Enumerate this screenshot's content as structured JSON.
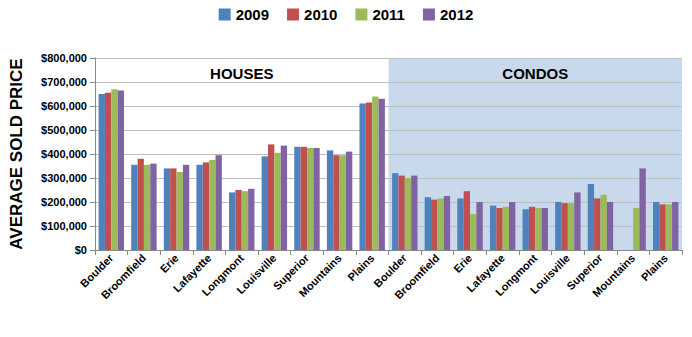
{
  "chart_data": {
    "type": "bar",
    "y_label": "AVERAGE SOLD PRICE",
    "annotations": [
      "HOUSES",
      "CONDOS"
    ],
    "categories": [
      "Boulder",
      "Broomfield",
      "Erie",
      "Lafayette",
      "Longmont",
      "Louisville",
      "Superior",
      "Mountains",
      "Plains",
      "Boulder",
      "Broomfield",
      "Erie",
      "Lafayette",
      "Longmont",
      "Louisville",
      "Superior",
      "Mountains",
      "Plains"
    ],
    "series": [
      {
        "name": "2009",
        "color": "#4F81BD",
        "values": [
          650000,
          355000,
          340000,
          355000,
          240000,
          390000,
          430000,
          415000,
          610000,
          320000,
          220000,
          215000,
          185000,
          170000,
          200000,
          275000,
          null,
          200000
        ]
      },
      {
        "name": "2010",
        "color": "#C0504D",
        "values": [
          655000,
          380000,
          340000,
          365000,
          250000,
          440000,
          430000,
          395000,
          615000,
          310000,
          210000,
          245000,
          175000,
          180000,
          195000,
          215000,
          null,
          190000
        ]
      },
      {
        "name": "2011",
        "color": "#9BBB59",
        "values": [
          670000,
          355000,
          325000,
          375000,
          245000,
          405000,
          425000,
          395000,
          640000,
          300000,
          215000,
          150000,
          180000,
          175000,
          195000,
          230000,
          175000,
          190000
        ]
      },
      {
        "name": "2012",
        "color": "#8064A2",
        "values": [
          665000,
          360000,
          355000,
          395000,
          255000,
          435000,
          425000,
          410000,
          630000,
          310000,
          225000,
          200000,
          200000,
          175000,
          240000,
          200000,
          340000,
          200000
        ]
      }
    ],
    "ylim": [
      0,
      800000
    ],
    "yticks": [
      {
        "value": 0,
        "label": "$0"
      },
      {
        "value": 100000,
        "label": "$100,000"
      },
      {
        "value": 200000,
        "label": "$200,000"
      },
      {
        "value": 300000,
        "label": "$300,000"
      },
      {
        "value": 400000,
        "label": "$400,000"
      },
      {
        "value": 500000,
        "label": "$500,000"
      },
      {
        "value": 600000,
        "label": "$600,000"
      },
      {
        "value": 700000,
        "label": "$700,000"
      },
      {
        "value": 800000,
        "label": "$800,000"
      }
    ],
    "grid": true,
    "legend": "top"
  }
}
